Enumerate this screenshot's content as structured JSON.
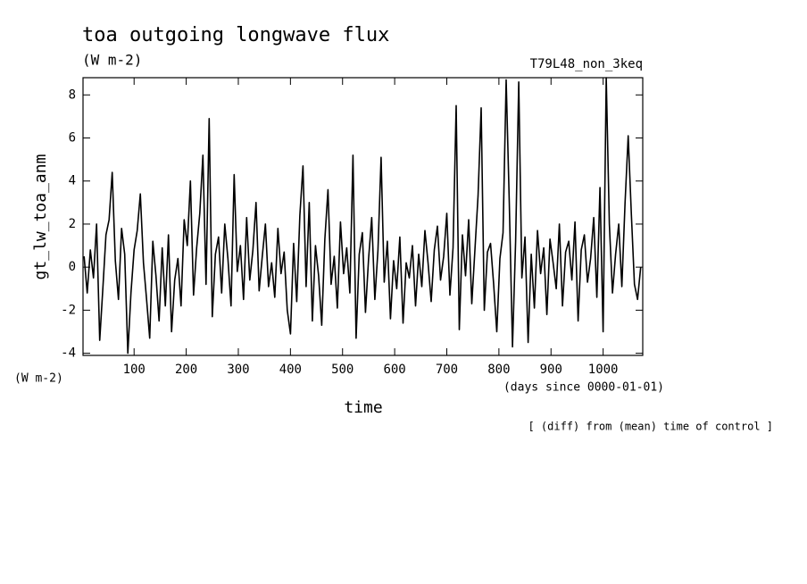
{
  "chart_data": {
    "type": "line",
    "title": "toa outgoing longwave flux",
    "subtitle": "(W m-2)",
    "run_label": "T79L48_non_3keq",
    "y_label": "gt_lw_toa_anm",
    "y_units": "(W m-2)",
    "x_label": "time",
    "x_units": "(days since 0000-01-01)",
    "note": "[ (diff) from (mean) time of control ]",
    "color": "#000000",
    "xlim": [
      2,
      1076
    ],
    "ylim": [
      -4.1,
      8.8
    ],
    "xticks": [
      100,
      200,
      300,
      400,
      500,
      600,
      700,
      800,
      900,
      1000
    ],
    "yticks": [
      -4,
      -2,
      0,
      2,
      4,
      6,
      8
    ],
    "x": [
      4,
      10,
      16,
      22,
      28,
      34,
      40,
      46,
      52,
      58,
      64,
      70,
      76,
      82,
      88,
      94,
      100,
      106,
      112,
      118,
      124,
      130,
      136,
      142,
      148,
      154,
      160,
      166,
      172,
      178,
      184,
      190,
      196,
      202,
      208,
      214,
      220,
      226,
      232,
      238,
      244,
      250,
      256,
      262,
      268,
      274,
      280,
      286,
      292,
      298,
      304,
      310,
      316,
      322,
      328,
      334,
      340,
      346,
      352,
      358,
      364,
      370,
      376,
      382,
      388,
      394,
      400,
      406,
      412,
      418,
      424,
      430,
      436,
      442,
      448,
      454,
      460,
      466,
      472,
      478,
      484,
      490,
      496,
      502,
      508,
      514,
      520,
      526,
      532,
      538,
      544,
      550,
      556,
      562,
      568,
      574,
      580,
      586,
      592,
      598,
      604,
      610,
      616,
      622,
      628,
      634,
      640,
      646,
      652,
      658,
      664,
      670,
      676,
      682,
      688,
      694,
      700,
      706,
      712,
      718,
      724,
      730,
      736,
      742,
      748,
      754,
      760,
      766,
      772,
      778,
      784,
      790,
      796,
      802,
      808,
      814,
      820,
      826,
      832,
      838,
      844,
      850,
      856,
      862,
      868,
      874,
      880,
      886,
      892,
      898,
      904,
      910,
      916,
      922,
      928,
      934,
      940,
      946,
      952,
      958,
      964,
      970,
      976,
      982,
      988,
      994,
      1000,
      1006,
      1012,
      1018,
      1024,
      1030,
      1036,
      1042,
      1048,
      1054,
      1060,
      1066,
      1072
    ],
    "values": [
      0.5,
      -1.2,
      0.8,
      -0.5,
      2.0,
      -3.4,
      -1.0,
      1.5,
      2.2,
      4.4,
      0.3,
      -1.5,
      1.8,
      0.6,
      -4.0,
      -1.2,
      0.8,
      1.7,
      3.4,
      0.2,
      -1.5,
      -3.3,
      1.2,
      -0.4,
      -2.5,
      0.9,
      -1.8,
      1.5,
      -3.0,
      -0.6,
      0.4,
      -1.8,
      2.2,
      1.0,
      4.0,
      -1.3,
      0.9,
      2.5,
      5.2,
      -0.8,
      6.9,
      -2.3,
      0.6,
      1.4,
      -1.2,
      2.0,
      0.4,
      -1.8,
      4.3,
      -0.2,
      1.0,
      -1.5,
      2.3,
      -0.6,
      0.8,
      3.0,
      -1.1,
      0.5,
      2.0,
      -0.9,
      0.2,
      -1.4,
      1.8,
      -0.3,
      0.7,
      -2.0,
      -3.1,
      1.1,
      -1.6,
      2.4,
      4.7,
      -0.9,
      3.0,
      -2.5,
      1.0,
      -0.4,
      -2.7,
      1.3,
      3.6,
      -0.8,
      0.5,
      -1.9,
      2.1,
      -0.3,
      0.9,
      -1.2,
      5.2,
      -3.3,
      0.6,
      1.6,
      -2.1,
      0.4,
      2.3,
      -1.5,
      0.8,
      5.1,
      -0.7,
      1.2,
      -2.4,
      0.3,
      -1.0,
      1.4,
      -2.6,
      0.2,
      -0.5,
      1.0,
      -1.8,
      0.6,
      -0.9,
      1.7,
      0.2,
      -1.6,
      0.8,
      1.9,
      -0.6,
      0.5,
      2.5,
      -1.3,
      0.9,
      7.5,
      -2.9,
      1.5,
      -0.4,
      2.2,
      -1.7,
      0.8,
      3.3,
      7.4,
      -2.0,
      0.7,
      1.1,
      -0.8,
      -3.0,
      0.4,
      1.6,
      8.7,
      3.0,
      -3.7,
      1.2,
      8.6,
      -0.5,
      1.4,
      -3.5,
      0.6,
      -1.9,
      1.7,
      -0.3,
      0.9,
      -2.2,
      1.3,
      0.2,
      -1.0,
      2.0,
      -1.8,
      0.7,
      1.2,
      -0.6,
      2.1,
      -2.5,
      0.8,
      1.5,
      -0.7,
      0.4,
      2.3,
      -1.4,
      3.7,
      -3.0,
      8.8,
      2.0,
      -1.2,
      0.6,
      2.0,
      -0.9,
      3.0,
      6.1,
      2.5,
      -0.8,
      -1.5,
      0.0
    ]
  }
}
